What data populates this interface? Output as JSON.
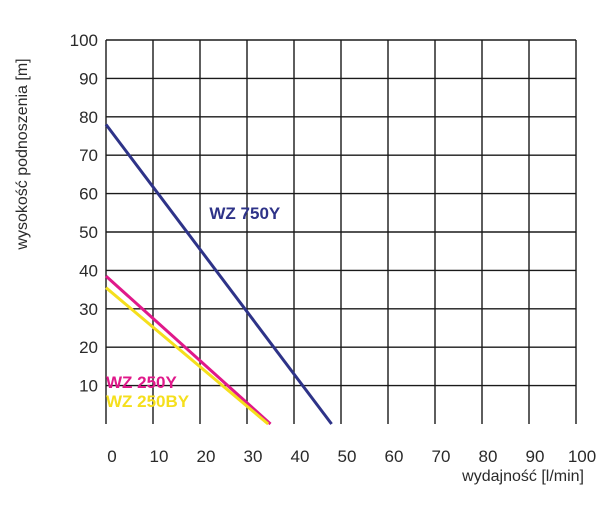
{
  "chart_data": {
    "type": "line",
    "title": "",
    "xlabel": "wydajność [l/min]",
    "ylabel": "wysokość podnoszenia [m]",
    "xlim": [
      0,
      100
    ],
    "ylim": [
      0,
      100
    ],
    "x_ticks": [
      0,
      10,
      20,
      30,
      40,
      50,
      60,
      70,
      80,
      90,
      100
    ],
    "y_ticks": [
      10,
      20,
      30,
      40,
      50,
      60,
      70,
      80,
      90,
      100
    ],
    "grid": true,
    "legend": "none",
    "series": [
      {
        "name": "WZ 750Y",
        "color": "#2e3388",
        "x": [
          0,
          48
        ],
        "y": [
          78,
          0
        ],
        "label_at": [
          22,
          55
        ]
      },
      {
        "name": "WZ 250Y",
        "color": "#e0198a",
        "x": [
          0,
          35
        ],
        "y": [
          38.5,
          0
        ],
        "label_at": [
          0,
          11
        ]
      },
      {
        "name": "WZ 250BY",
        "color": "#f5df1c",
        "x": [
          0,
          34.5
        ],
        "y": [
          35.5,
          0
        ],
        "label_at": [
          0,
          6
        ]
      }
    ]
  }
}
